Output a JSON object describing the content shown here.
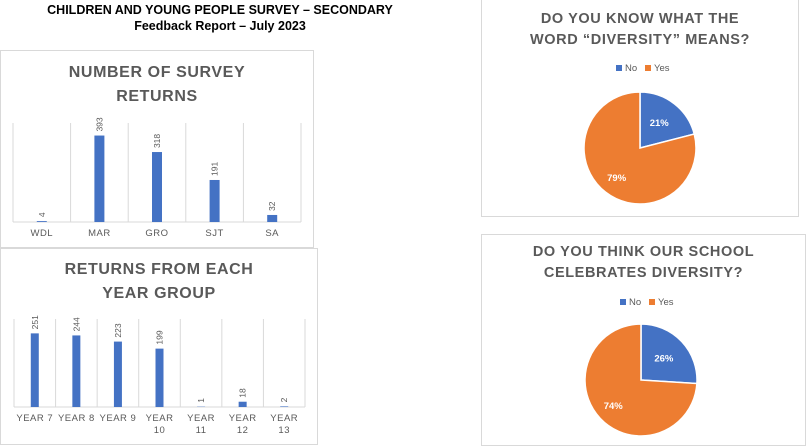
{
  "header": {
    "title": "CHILDREN AND YOUNG PEOPLE SURVEY – SECONDARY",
    "subtitle": "Feedback Report – July 2023"
  },
  "colors": {
    "blue": "#4472c4",
    "orange": "#ed7d31",
    "grid": "#d9d9d9",
    "text": "#595959"
  },
  "chart_data": [
    {
      "type": "bar",
      "title_line1": "NUMBER OF SURVEY",
      "title_line2": "RETURNS",
      "categories": [
        "WDL",
        "MAR",
        "GRO",
        "SJT",
        "SA"
      ],
      "values": [
        4,
        393,
        318,
        191,
        32
      ],
      "ylim": [
        0,
        450
      ],
      "grid": "vertical"
    },
    {
      "type": "bar",
      "title_line1": "RETURNS FROM EACH",
      "title_line2": "YEAR GROUP",
      "categories": [
        [
          "YEAR 7"
        ],
        [
          "YEAR 8"
        ],
        [
          "YEAR 9"
        ],
        [
          "YEAR",
          "10"
        ],
        [
          "YEAR",
          "11"
        ],
        [
          "YEAR",
          "12"
        ],
        [
          "YEAR",
          "13"
        ]
      ],
      "values": [
        251,
        244,
        223,
        199,
        1,
        18,
        2
      ],
      "ylim": [
        0,
        300
      ],
      "grid": "vertical"
    },
    {
      "type": "pie",
      "title_line1": "DO YOU KNOW WHAT THE",
      "title_line2": "WORD “DIVERSITY” MEANS?",
      "legend": [
        "No",
        "Yes"
      ],
      "legend_placement": "top",
      "values": [
        21,
        79
      ],
      "labels": [
        "21%",
        "79%"
      ]
    },
    {
      "type": "pie",
      "title_line1": "DO YOU THINK OUR SCHOOL",
      "title_line2": "CELEBRATES DIVERSITY?",
      "legend": [
        "No",
        "Yes"
      ],
      "legend_placement": "top",
      "values": [
        26,
        74
      ],
      "labels": [
        "26%",
        "74%"
      ]
    }
  ]
}
